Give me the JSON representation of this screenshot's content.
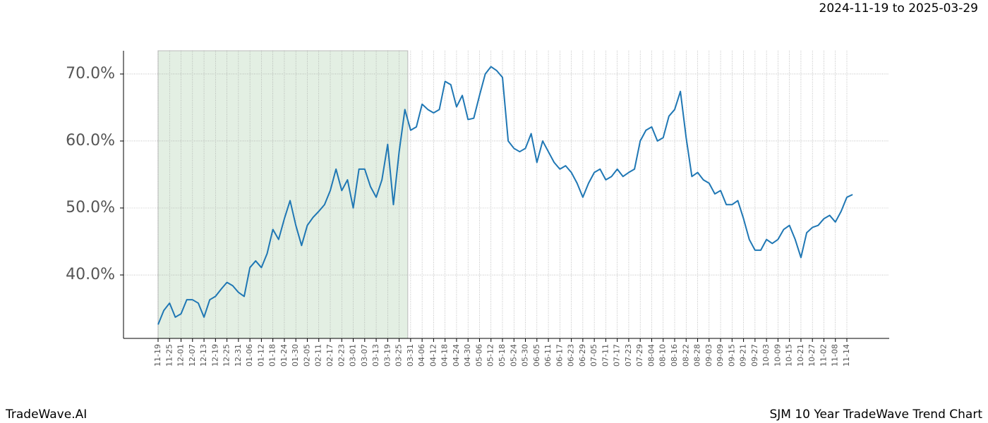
{
  "chart_data": {
    "type": "line",
    "title": "2024-11-19 to 2025-03-29",
    "brand": "TradeWave.AI",
    "caption": "SJM 10 Year TradeWave Trend Chart",
    "categories": [
      "11-19",
      null,
      "11-25",
      null,
      "12-01",
      null,
      "12-07",
      null,
      "12-13",
      null,
      "12-19",
      null,
      "12-25",
      null,
      "12-31",
      null,
      "01-06",
      null,
      "01-12",
      null,
      "01-18",
      null,
      "01-24",
      null,
      "01-30",
      null,
      "02-05",
      null,
      "02-11",
      null,
      "02-17",
      null,
      "02-23",
      null,
      "03-01",
      null,
      "03-07",
      null,
      "03-13",
      null,
      "03-19",
      null,
      "03-25",
      null,
      "03-31",
      null,
      "04-06",
      null,
      "04-12",
      null,
      "04-18",
      null,
      "04-24",
      null,
      "04-30",
      null,
      "05-06",
      null,
      "05-12",
      null,
      "05-18",
      null,
      "05-24",
      null,
      "05-30",
      null,
      "06-05",
      null,
      "06-11",
      null,
      "06-17",
      null,
      "06-23",
      null,
      "06-29",
      null,
      "07-05",
      null,
      "07-11",
      null,
      "07-17",
      null,
      "07-23",
      null,
      "07-29",
      null,
      "08-04",
      null,
      "08-10",
      null,
      "08-16",
      null,
      "08-22",
      null,
      "08-28",
      null,
      "09-03",
      null,
      "09-09",
      null,
      "09-15",
      null,
      "09-21",
      null,
      "09-27",
      null,
      "10-03",
      null,
      "10-09",
      null,
      "10-15",
      null,
      "10-21",
      null,
      "10-27",
      null,
      "11-02",
      null,
      "11-08",
      null,
      "11-14",
      null
    ],
    "series": [
      {
        "name": "SJM",
        "color": "#1f77b4",
        "values": [
          32.6,
          34.7,
          35.8,
          33.7,
          34.2,
          36.3,
          36.3,
          35.8,
          33.7,
          36.3,
          36.8,
          37.9,
          38.9,
          38.4,
          37.4,
          36.8,
          41.1,
          42.1,
          41.1,
          43.2,
          46.8,
          45.3,
          48.4,
          51.1,
          47.4,
          44.4,
          47.4,
          48.6,
          49.5,
          50.5,
          52.6,
          55.8,
          52.6,
          54.2,
          50.0,
          55.8,
          55.8,
          53.2,
          51.6,
          54.2,
          59.5,
          50.5,
          58.4,
          64.7,
          61.6,
          62.1,
          65.5,
          64.7,
          64.2,
          64.7,
          68.9,
          68.4,
          65.1,
          66.8,
          63.2,
          63.4,
          66.8,
          70.0,
          71.1,
          70.5,
          69.5,
          60.0,
          58.9,
          58.4,
          58.9,
          61.1,
          56.8,
          60.0,
          58.4,
          56.8,
          55.8,
          56.3,
          55.3,
          53.7,
          51.6,
          53.7,
          55.3,
          55.8,
          54.2,
          54.7,
          55.8,
          54.7,
          55.3,
          55.8,
          60.0,
          61.6,
          62.1,
          60.0,
          60.5,
          63.7,
          64.7,
          67.4,
          60.5,
          54.7,
          55.3,
          54.2,
          53.7,
          52.1,
          52.6,
          50.5,
          50.5,
          51.1,
          48.4,
          45.3,
          43.7,
          43.7,
          45.3,
          44.7,
          45.3,
          46.8,
          47.4,
          45.3,
          42.6,
          46.3,
          47.1,
          47.4,
          48.4,
          48.9,
          47.9,
          49.5,
          51.6,
          52.0
        ]
      }
    ],
    "ylim": [
      30.53,
      73.47
    ],
    "yticks": [
      {
        "value": 40,
        "label": "40.0%"
      },
      {
        "value": 50,
        "label": "50.0%"
      },
      {
        "value": 60,
        "label": "60.0%"
      },
      {
        "value": 70,
        "label": "70.0%"
      }
    ],
    "grid": true
  }
}
